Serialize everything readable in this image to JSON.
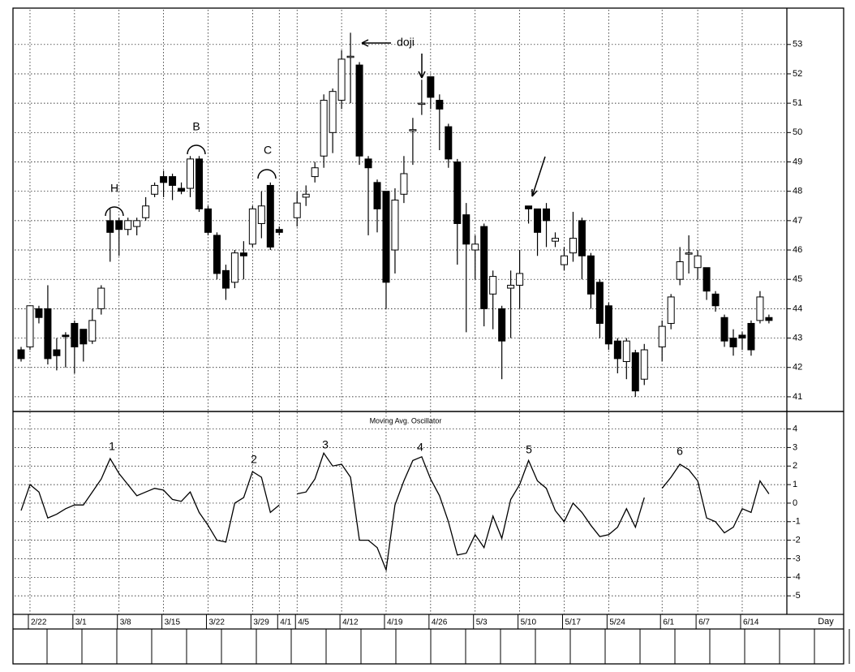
{
  "chart_data": [
    {
      "type": "candlestick",
      "up_color": "#ffffff",
      "down_color": "#000000",
      "ylim": [
        40.5,
        54.1
      ],
      "yticks": [
        41,
        42,
        43,
        44,
        45,
        46,
        47,
        48,
        49,
        50,
        51,
        52,
        53
      ],
      "grid": true,
      "annotations": [
        "H",
        "B",
        "C",
        "doji"
      ],
      "open": [
        42.6,
        42.7,
        44.0,
        44.0,
        42.6,
        43.1,
        43.5,
        43.3,
        42.9,
        44.0,
        47.0,
        47.0,
        46.7,
        46.8,
        47.1,
        47.9,
        48.5,
        48.5,
        48.1,
        48.1,
        49.1,
        47.4,
        46.5,
        45.3,
        44.9,
        45.9,
        46.2,
        46.9,
        48.2,
        46.7,
        null,
        47.1,
        47.8,
        48.5,
        49.2,
        50.0,
        51.1,
        52.6,
        52.3,
        49.1,
        48.3,
        48.0,
        46.0,
        47.9,
        50.1,
        51.0,
        51.9,
        51.1,
        50.2,
        49.0,
        47.2,
        46.0,
        46.8,
        44.5,
        44.0,
        44.7,
        44.8,
        47.5,
        47.4,
        47.4,
        46.3,
        45.5,
        45.9,
        47.0,
        45.8,
        44.9,
        44.1,
        42.9,
        42.2,
        42.5,
        41.6,
        null,
        42.7,
        43.5,
        45.0,
        45.9,
        45.4,
        45.4,
        44.5,
        43.7,
        43.0,
        43.1,
        43.5,
        43.6,
        43.7
      ],
      "high": [
        42.7,
        44.1,
        44.1,
        44.8,
        43.0,
        43.2,
        43.6,
        43.3,
        44.0,
        44.8,
        47.4,
        47.1,
        47.1,
        47.1,
        47.8,
        48.3,
        48.7,
        48.6,
        48.3,
        49.2,
        49.2,
        47.5,
        46.6,
        45.5,
        46.0,
        46.3,
        47.5,
        48.0,
        48.3,
        46.8,
        null,
        48.0,
        48.2,
        49.0,
        51.3,
        51.5,
        52.8,
        53.4,
        52.4,
        49.2,
        48.4,
        48.0,
        48.1,
        49.2,
        50.5,
        51.8,
        51.9,
        51.3,
        50.3,
        49.1,
        47.6,
        46.5,
        46.9,
        45.3,
        44.1,
        45.3,
        46.0,
        47.5,
        47.4,
        47.6,
        46.6,
        46.1,
        47.3,
        47.1,
        45.9,
        45.0,
        44.2,
        43.0,
        43.0,
        42.6,
        42.8,
        null,
        43.6,
        44.5,
        46.1,
        46.5,
        46.0,
        45.4,
        44.6,
        43.8,
        43.3,
        43.2,
        43.6,
        44.6,
        43.8
      ],
      "low": [
        42.2,
        42.6,
        43.5,
        42.1,
        41.9,
        42.0,
        41.8,
        42.2,
        42.8,
        43.8,
        45.6,
        45.8,
        46.5,
        46.5,
        47.0,
        47.8,
        47.8,
        47.7,
        47.9,
        47.8,
        47.3,
        46.5,
        45.0,
        44.3,
        44.7,
        45.0,
        46.1,
        46.4,
        46.0,
        46.5,
        null,
        46.8,
        47.5,
        48.3,
        48.8,
        49.3,
        50.8,
        51.0,
        48.9,
        46.5,
        46.6,
        44.0,
        45.2,
        47.6,
        48.9,
        50.6,
        50.8,
        49.4,
        48.8,
        45.5,
        43.2,
        45.0,
        43.4,
        43.3,
        41.6,
        43.0,
        44.0,
        46.9,
        45.8,
        46.1,
        46.1,
        45.3,
        45.6,
        45.0,
        44.0,
        43.0,
        42.6,
        41.8,
        41.6,
        41.0,
        41.4,
        null,
        42.2,
        43.3,
        44.8,
        45.2,
        45.0,
        44.3,
        43.9,
        42.7,
        42.4,
        42.6,
        42.4,
        43.5,
        43.5
      ],
      "close": [
        42.3,
        44.1,
        43.7,
        42.3,
        42.4,
        43.05,
        42.7,
        42.8,
        43.6,
        44.7,
        46.6,
        46.7,
        47.0,
        47.0,
        47.5,
        48.2,
        48.3,
        48.2,
        48.0,
        49.1,
        47.4,
        46.6,
        45.2,
        44.7,
        45.9,
        45.8,
        47.4,
        47.5,
        46.1,
        46.6,
        null,
        47.6,
        47.9,
        48.8,
        51.1,
        51.4,
        52.5,
        52.6,
        49.2,
        48.8,
        47.4,
        44.9,
        47.7,
        48.6,
        50.1,
        51.0,
        51.2,
        50.8,
        49.1,
        46.9,
        46.2,
        46.2,
        44.0,
        45.1,
        42.9,
        44.8,
        45.2,
        47.4,
        46.6,
        47.0,
        46.4,
        45.8,
        46.4,
        45.8,
        44.5,
        43.5,
        42.8,
        42.3,
        42.9,
        41.2,
        42.6,
        null,
        43.4,
        44.4,
        45.6,
        45.9,
        45.8,
        44.6,
        44.1,
        42.9,
        42.7,
        43.0,
        42.6,
        44.4,
        43.6
      ]
    },
    {
      "type": "line",
      "title": "Moving Avg. Oscillator",
      "color": "#000000",
      "x_label": "Day",
      "ylim": [
        -6,
        4.9
      ],
      "yticks": [
        4,
        3,
        2,
        1,
        0,
        -1,
        -2,
        -3,
        -4,
        -5
      ],
      "grid": true,
      "annotations": [
        "1",
        "2",
        "3",
        "4",
        "5",
        "6"
      ],
      "categories": [
        null,
        "2/22",
        null,
        null,
        null,
        null,
        "3/1",
        null,
        null,
        null,
        null,
        "3/8",
        null,
        null,
        null,
        null,
        "3/15",
        null,
        null,
        null,
        null,
        "3/22",
        null,
        null,
        null,
        null,
        "3/29",
        null,
        null,
        "4/1",
        null,
        "4/5",
        null,
        null,
        null,
        null,
        "4/12",
        null,
        null,
        null,
        null,
        "4/19",
        null,
        null,
        null,
        null,
        "4/26",
        null,
        null,
        null,
        null,
        "5/3",
        null,
        null,
        null,
        null,
        "5/10",
        null,
        null,
        null,
        null,
        "5/17",
        null,
        null,
        null,
        null,
        "5/24",
        null,
        null,
        null,
        null,
        null,
        "6/1",
        null,
        null,
        null,
        "6/7",
        null,
        null,
        null,
        null,
        "6/14",
        null,
        null,
        null
      ],
      "values": [
        -0.4,
        1.0,
        0.6,
        -0.8,
        -0.6,
        -0.3,
        -0.1,
        -0.1,
        0.6,
        1.3,
        2.4,
        1.6,
        1.0,
        0.4,
        0.6,
        0.8,
        0.7,
        0.2,
        0.1,
        0.6,
        -0.5,
        -1.2,
        -2.0,
        -2.1,
        0.0,
        0.3,
        1.7,
        1.4,
        -0.5,
        -0.1,
        null,
        0.5,
        0.6,
        1.3,
        2.7,
        2.0,
        2.1,
        1.4,
        -2.0,
        -2.0,
        -2.4,
        -3.6,
        -0.1,
        1.2,
        2.3,
        2.5,
        1.3,
        0.4,
        -1.0,
        -2.8,
        -2.7,
        -1.7,
        -2.4,
        -0.7,
        -1.9,
        0.2,
        1.0,
        2.3,
        1.2,
        0.8,
        -0.4,
        -1.0,
        0.0,
        -0.5,
        -1.2,
        -1.8,
        -1.7,
        -1.3,
        -0.3,
        -1.3,
        0.3,
        null,
        0.8,
        1.4,
        2.1,
        1.8,
        1.2,
        -0.8,
        -1.0,
        -1.6,
        -1.3,
        -0.3,
        -0.5,
        1.2,
        0.5
      ]
    }
  ]
}
